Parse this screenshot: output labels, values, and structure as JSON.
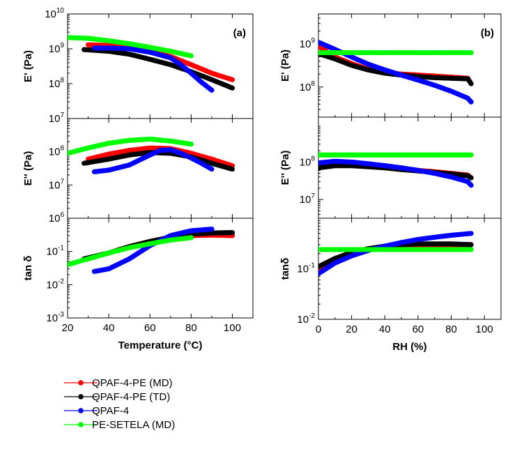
{
  "chart_data": [
    {
      "id": "a-storage",
      "type": "scatter",
      "panel_label": "(a)",
      "ylabel": "E' (Pa)",
      "xlim": [
        20,
        110
      ],
      "ylim_log10": [
        7,
        10
      ],
      "yscale": "log",
      "series": [
        {
          "name": "QPAF-4-PE (MD)",
          "x": [
            30,
            40,
            50,
            60,
            70,
            80,
            90,
            100
          ],
          "y": [
            1300000000.0,
            1250000000.0,
            1150000000.0,
            900000000.0,
            600000000.0,
            350000000.0,
            200000000.0,
            130000000.0
          ]
        },
        {
          "name": "QPAF-4-PE (TD)",
          "x": [
            28,
            40,
            50,
            60,
            70,
            80,
            90,
            100
          ],
          "y": [
            950000000.0,
            850000000.0,
            700000000.0,
            500000000.0,
            350000000.0,
            220000000.0,
            130000000.0,
            75000000.0
          ]
        },
        {
          "name": "QPAF-4",
          "x": [
            33,
            40,
            50,
            60,
            70,
            75,
            80,
            85,
            90
          ],
          "y": [
            1050000000.0,
            1050000000.0,
            1000000000.0,
            800000000.0,
            550000000.0,
            350000000.0,
            200000000.0,
            110000000.0,
            65000000.0
          ]
        },
        {
          "name": "PE-SETELA (MD)",
          "x": [
            20,
            30,
            40,
            50,
            60,
            70,
            80
          ],
          "y": [
            2100000000.0,
            2000000000.0,
            1700000000.0,
            1400000000.0,
            1100000000.0,
            850000000.0,
            630000000.0
          ]
        }
      ]
    },
    {
      "id": "a-loss",
      "type": "scatter",
      "ylabel": "E'' (Pa)",
      "xlim": [
        20,
        110
      ],
      "ylim_log10": [
        6,
        9
      ],
      "yscale": "log",
      "series": [
        {
          "name": "QPAF-4-PE (MD)",
          "x": [
            30,
            40,
            50,
            60,
            70,
            80,
            90,
            100
          ],
          "y": [
            60000000.0,
            85000000.0,
            110000000.0,
            130000000.0,
            125000000.0,
            90000000.0,
            60000000.0,
            38000000.0
          ]
        },
        {
          "name": "QPAF-4-PE (TD)",
          "x": [
            28,
            40,
            50,
            60,
            70,
            80,
            90,
            100
          ],
          "y": [
            45000000.0,
            60000000.0,
            80000000.0,
            95000000.0,
            90000000.0,
            70000000.0,
            45000000.0,
            30000000.0
          ]
        },
        {
          "name": "QPAF-4",
          "x": [
            33,
            40,
            50,
            60,
            65,
            70,
            75,
            80,
            85,
            90
          ],
          "y": [
            25000000.0,
            28000000.0,
            40000000.0,
            80000000.0,
            110000000.0,
            115000000.0,
            90000000.0,
            65000000.0,
            45000000.0,
            30000000.0
          ]
        },
        {
          "name": "PE-SETELA (MD)",
          "x": [
            20,
            30,
            40,
            50,
            60,
            70,
            80
          ],
          "y": [
            90000000.0,
            130000000.0,
            180000000.0,
            220000000.0,
            240000000.0,
            210000000.0,
            170000000.0
          ]
        }
      ]
    },
    {
      "id": "a-tand",
      "type": "scatter",
      "ylabel": "tan δ",
      "xlabel": "Temperature (°C)",
      "xlim": [
        20,
        110
      ],
      "ylim_log10": [
        -3,
        0
      ],
      "yscale": "log",
      "series": [
        {
          "name": "QPAF-4-PE (MD)",
          "x": [
            30,
            40,
            50,
            60,
            70,
            80,
            90,
            100
          ],
          "y": [
            0.06,
            0.09,
            0.14,
            0.2,
            0.26,
            0.3,
            0.31,
            0.3
          ]
        },
        {
          "name": "QPAF-4-PE (TD)",
          "x": [
            28,
            40,
            50,
            60,
            70,
            80,
            90,
            100
          ],
          "y": [
            0.06,
            0.09,
            0.14,
            0.2,
            0.27,
            0.33,
            0.36,
            0.37
          ]
        },
        {
          "name": "QPAF-4",
          "x": [
            33,
            40,
            50,
            60,
            70,
            80,
            90
          ],
          "y": [
            0.025,
            0.03,
            0.06,
            0.15,
            0.3,
            0.42,
            0.47
          ]
        },
        {
          "name": "PE-SETELA (MD)",
          "x": [
            20,
            30,
            40,
            50,
            60,
            70,
            80
          ],
          "y": [
            0.04,
            0.06,
            0.09,
            0.13,
            0.17,
            0.22,
            0.26
          ]
        }
      ]
    },
    {
      "id": "b-storage",
      "type": "scatter",
      "panel_label": "(b)",
      "ylabel": "E' (Pa)",
      "xlim": [
        0,
        110
      ],
      "ylim_log10": [
        7.3,
        9.7
      ],
      "yscale": "log",
      "series": [
        {
          "name": "QPAF-4-PE (MD)",
          "x": [
            0,
            10,
            20,
            30,
            40,
            50,
            60,
            70,
            80,
            90,
            92
          ],
          "y": [
            900000000.0,
            500000000.0,
            350000000.0,
            260000000.0,
            220000000.0,
            200000000.0,
            190000000.0,
            180000000.0,
            170000000.0,
            160000000.0,
            120000000.0
          ]
        },
        {
          "name": "QPAF-4-PE (TD)",
          "x": [
            0,
            10,
            20,
            30,
            40,
            50,
            60,
            70,
            80,
            90,
            92
          ],
          "y": [
            600000000.0,
            450000000.0,
            320000000.0,
            250000000.0,
            210000000.0,
            190000000.0,
            175000000.0,
            165000000.0,
            160000000.0,
            155000000.0,
            120000000.0
          ]
        },
        {
          "name": "QPAF-4",
          "x": [
            0,
            10,
            20,
            30,
            40,
            50,
            60,
            70,
            80,
            90,
            92
          ],
          "y": [
            1100000000.0,
            750000000.0,
            500000000.0,
            340000000.0,
            250000000.0,
            190000000.0,
            145000000.0,
            110000000.0,
            80000000.0,
            55000000.0,
            45000000.0
          ]
        },
        {
          "name": "PE-SETELA (MD)",
          "x": [
            0,
            10,
            20,
            30,
            40,
            50,
            60,
            70,
            80,
            92
          ],
          "y": [
            630000000.0,
            630000000.0,
            630000000.0,
            630000000.0,
            630000000.0,
            630000000.0,
            630000000.0,
            630000000.0,
            630000000.0,
            630000000.0
          ]
        }
      ]
    },
    {
      "id": "b-loss",
      "type": "scatter",
      "ylabel": "E'' (Pa)",
      "xlim": [
        0,
        110
      ],
      "ylim_log10": [
        6.5,
        9.2
      ],
      "yscale": "log",
      "series": [
        {
          "name": "QPAF-4-PE (MD)",
          "x": [
            0,
            10,
            20,
            30,
            40,
            50,
            60,
            70,
            80,
            90,
            92
          ],
          "y": [
            80000000.0,
            100000000.0,
            95000000.0,
            85000000.0,
            75000000.0,
            68000000.0,
            60000000.0,
            55000000.0,
            50000000.0,
            45000000.0,
            38000000.0
          ]
        },
        {
          "name": "QPAF-4-PE (TD)",
          "x": [
            0,
            10,
            20,
            30,
            40,
            50,
            60,
            70,
            80,
            90,
            92
          ],
          "y": [
            70000000.0,
            80000000.0,
            80000000.0,
            75000000.0,
            70000000.0,
            63000000.0,
            58000000.0,
            53000000.0,
            48000000.0,
            43000000.0,
            38000000.0
          ]
        },
        {
          "name": "QPAF-4",
          "x": [
            0,
            10,
            20,
            30,
            40,
            50,
            60,
            70,
            80,
            90,
            92
          ],
          "y": [
            95000000.0,
            105000000.0,
            100000000.0,
            90000000.0,
            80000000.0,
            70000000.0,
            60000000.0,
            50000000.0,
            40000000.0,
            30000000.0,
            24000000.0
          ]
        },
        {
          "name": "PE-SETELA (MD)",
          "x": [
            0,
            10,
            20,
            30,
            40,
            50,
            60,
            70,
            80,
            92
          ],
          "y": [
            155000000.0,
            155000000.0,
            155000000.0,
            155000000.0,
            155000000.0,
            155000000.0,
            155000000.0,
            155000000.0,
            155000000.0,
            155000000.0
          ]
        }
      ]
    },
    {
      "id": "b-tand",
      "type": "scatter",
      "ylabel": "tanδ",
      "xlabel": "RH (%)",
      "xlim": [
        0,
        110
      ],
      "ylim_log10": [
        -2,
        0
      ],
      "yscale": "log",
      "series": [
        {
          "name": "QPAF-4-PE (MD)",
          "x": [
            0,
            10,
            20,
            30,
            40,
            50,
            60,
            70,
            80,
            92
          ],
          "y": [
            0.09,
            0.15,
            0.2,
            0.24,
            0.27,
            0.29,
            0.3,
            0.3,
            0.3,
            0.3
          ]
        },
        {
          "name": "QPAF-4-PE (TD)",
          "x": [
            0,
            10,
            20,
            30,
            40,
            50,
            60,
            70,
            80,
            92
          ],
          "y": [
            0.11,
            0.16,
            0.21,
            0.25,
            0.28,
            0.3,
            0.31,
            0.31,
            0.31,
            0.3
          ]
        },
        {
          "name": "QPAF-4",
          "x": [
            0,
            10,
            20,
            30,
            40,
            50,
            60,
            70,
            80,
            92
          ],
          "y": [
            0.08,
            0.13,
            0.18,
            0.23,
            0.28,
            0.33,
            0.38,
            0.42,
            0.46,
            0.5
          ]
        },
        {
          "name": "PE-SETELA (MD)",
          "x": [
            0,
            10,
            20,
            30,
            40,
            50,
            60,
            70,
            80,
            92
          ],
          "y": [
            0.24,
            0.24,
            0.24,
            0.24,
            0.24,
            0.24,
            0.24,
            0.24,
            0.24,
            0.24
          ]
        }
      ]
    }
  ],
  "legend": {
    "items": [
      {
        "name": "QPAF-4-PE (MD)",
        "color": "#ff0000"
      },
      {
        "name": "QPAF-4-PE (TD)",
        "color": "#000000"
      },
      {
        "name": "QPAF-4",
        "color": "#0000ff"
      },
      {
        "name": "PE-SETELA (MD)",
        "color": "#00ff00"
      }
    ]
  },
  "x_ticks_a": [
    20,
    40,
    60,
    80,
    100
  ],
  "x_ticks_b": [
    0,
    20,
    40,
    60,
    80,
    100
  ],
  "y_ticks": {
    "a-storage": [
      10,
      9,
      8,
      7
    ],
    "a-loss": [
      8,
      7,
      6
    ],
    "a-tand": [
      -1,
      -2,
      -3
    ],
    "b-storage": [
      9,
      8
    ],
    "b-loss": [
      8,
      7
    ],
    "b-tand": [
      -1,
      -2
    ]
  }
}
